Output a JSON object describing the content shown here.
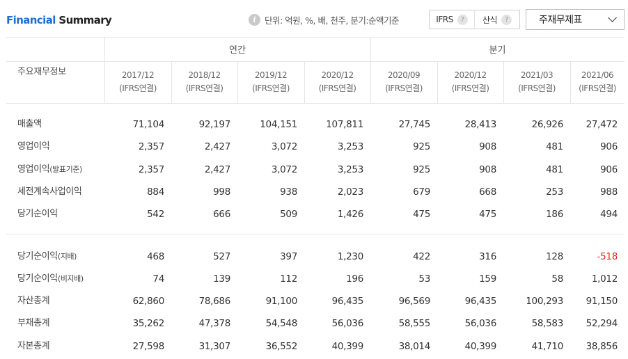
{
  "header": {
    "title_part1": "Financial",
    "title_part2": " Summary",
    "unit_text": "단위: 억원, %, 배, 천주, 분기:순액기준",
    "toggle": [
      {
        "label": "IFRS",
        "help": "?"
      },
      {
        "label": "산식",
        "help": "?"
      }
    ],
    "select_label": "주재무제표"
  },
  "table": {
    "corner_label": "주요재무정보",
    "groups": [
      "연간",
      "분기"
    ],
    "columns": [
      {
        "period": "2017/12",
        "basis": "(IFRS연결)"
      },
      {
        "period": "2018/12",
        "basis": "(IFRS연결)"
      },
      {
        "period": "2019/12",
        "basis": "(IFRS연결)"
      },
      {
        "period": "2020/12",
        "basis": "(IFRS연결)"
      },
      {
        "period": "2020/09",
        "basis": "(IFRS연결)"
      },
      {
        "period": "2020/12",
        "basis": "(IFRS연결)"
      },
      {
        "period": "2021/03",
        "basis": "(IFRS연결)"
      },
      {
        "period": "2021/06",
        "basis": "(IFRS연결)"
      }
    ],
    "rows": [
      {
        "label": "매출액",
        "sub": "",
        "values": [
          "71,104",
          "92,197",
          "104,151",
          "107,811",
          "27,745",
          "28,413",
          "26,926",
          "27,472"
        ]
      },
      {
        "label": "영업이익",
        "sub": "",
        "values": [
          "2,357",
          "2,427",
          "3,072",
          "3,253",
          "925",
          "908",
          "481",
          "906"
        ]
      },
      {
        "label": "영업이익",
        "sub": "(발표기준)",
        "values": [
          "2,357",
          "2,427",
          "3,072",
          "3,253",
          "925",
          "908",
          "481",
          "906"
        ]
      },
      {
        "label": "세전계속사업이익",
        "sub": "",
        "values": [
          "884",
          "998",
          "938",
          "2,023",
          "679",
          "668",
          "253",
          "988"
        ]
      },
      {
        "label": "당기순이익",
        "sub": "",
        "values": [
          "542",
          "666",
          "509",
          "1,426",
          "475",
          "475",
          "186",
          "494"
        ]
      },
      {
        "label": "당기순이익",
        "sub": "(지배)",
        "values": [
          "468",
          "527",
          "397",
          "1,230",
          "422",
          "316",
          "128",
          "-518"
        ]
      },
      {
        "label": "당기순이익",
        "sub": "(비지배)",
        "values": [
          "74",
          "139",
          "112",
          "196",
          "53",
          "159",
          "58",
          "1,012"
        ]
      },
      {
        "label": "자산총계",
        "sub": "",
        "values": [
          "62,860",
          "78,686",
          "91,100",
          "96,435",
          "96,569",
          "96,435",
          "100,293",
          "91,150"
        ]
      },
      {
        "label": "부채총계",
        "sub": "",
        "values": [
          "35,262",
          "47,378",
          "54,548",
          "56,036",
          "58,555",
          "56,036",
          "58,583",
          "52,294"
        ]
      },
      {
        "label": "자본총계",
        "sub": "",
        "values": [
          "27,598",
          "31,307",
          "36,552",
          "40,399",
          "38,014",
          "40,399",
          "41,710",
          "38,856"
        ]
      }
    ],
    "colors": {
      "negative": "#e0261e",
      "accent": "#1f6ed4"
    }
  }
}
